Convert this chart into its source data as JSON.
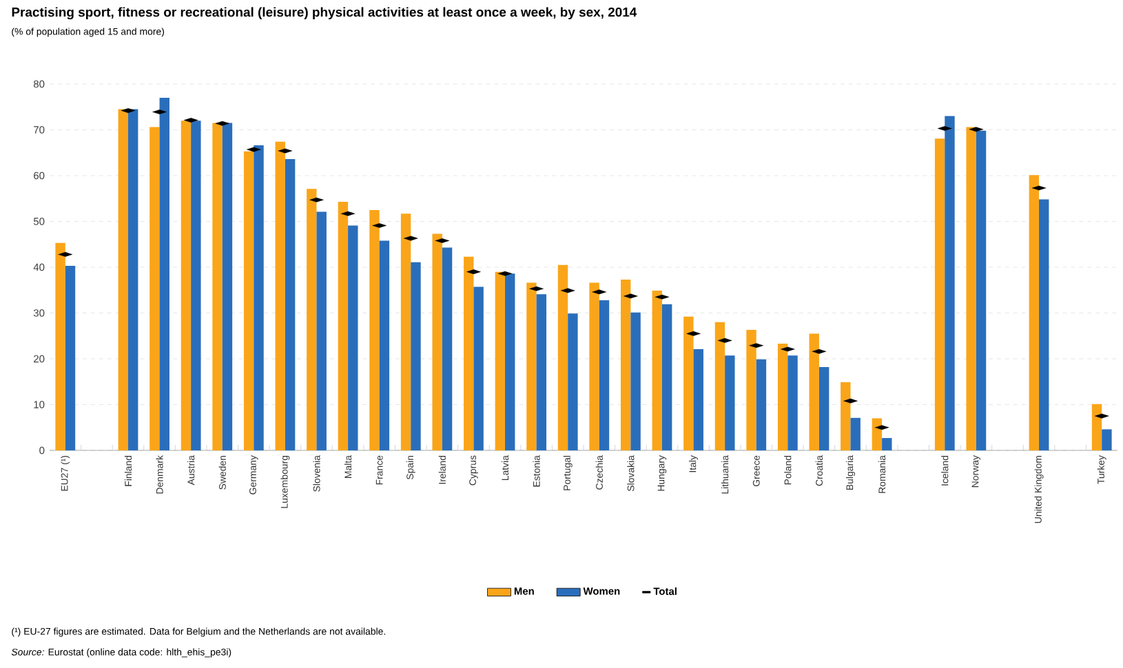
{
  "chart_data": {
    "type": "bar",
    "title": "Practising sport, fitness or recreational (leisure) physical activities at least once a week, by sex, 2014",
    "subtitle": "(% of population aged 15 and more)",
    "categories": [
      "EU27 (¹)",
      null,
      "Finland",
      "Denmark",
      "Austria",
      "Sweden",
      "Germany",
      "Luxembourg",
      "Slovenia",
      "Malta",
      "France",
      "Spain",
      "Ireland",
      "Cyprus",
      "Latvia",
      "Estonia",
      "Portugal",
      "Czechia",
      "Slovakia",
      "Hungary",
      "Italy",
      "Lithuania",
      "Greece",
      "Poland",
      "Croatia",
      "Bulgaria",
      "Romania",
      null,
      "Iceland",
      "Norway",
      null,
      "United Kingdom",
      null,
      "Turkey"
    ],
    "series": [
      {
        "name": "Men",
        "color": "#faa519",
        "values": [
          45.3,
          null,
          74.5,
          70.6,
          72.0,
          71.5,
          65.3,
          67.4,
          57.1,
          54.3,
          52.5,
          51.7,
          47.3,
          42.3,
          39.0,
          36.6,
          40.5,
          36.6,
          37.3,
          34.9,
          29.2,
          28.0,
          26.3,
          23.3,
          25.5,
          14.9,
          7.0,
          null,
          68.1,
          70.6,
          null,
          60.1,
          null,
          10.1
        ]
      },
      {
        "name": "Women",
        "color": "#2a6ebb",
        "values": [
          40.3,
          null,
          74.5,
          77.0,
          72.0,
          71.5,
          66.6,
          63.6,
          52.1,
          49.1,
          45.8,
          41.1,
          44.3,
          35.7,
          38.6,
          34.1,
          29.9,
          32.8,
          30.1,
          31.9,
          22.1,
          20.7,
          19.9,
          20.7,
          18.2,
          7.1,
          2.7,
          null,
          73.0,
          69.8,
          null,
          54.8,
          null,
          4.6
        ]
      },
      {
        "name": "Total",
        "color": "#000000",
        "type": "scatter",
        "marker": "diamond",
        "values": [
          42.8,
          null,
          74.2,
          73.9,
          72.1,
          71.4,
          65.7,
          65.4,
          54.7,
          51.7,
          49.1,
          46.3,
          45.8,
          39.0,
          38.6,
          35.3,
          34.9,
          34.6,
          33.7,
          33.5,
          25.5,
          24.0,
          22.9,
          22.1,
          21.6,
          10.8,
          5.0,
          null,
          70.3,
          70.1,
          null,
          57.3,
          null,
          7.5
        ]
      }
    ],
    "ylim": [
      0,
      80
    ],
    "yticks": [
      0,
      10,
      20,
      30,
      40,
      50,
      60,
      70,
      80
    ],
    "grid": "y",
    "legend": "bottom",
    "annotations": [
      "(¹) EU-27 figures are estimated. Data for Belgium and the Netherlands are not available.",
      "*Source:* Eurostat (online data code: hlth_ehis_pe3i)"
    ]
  }
}
